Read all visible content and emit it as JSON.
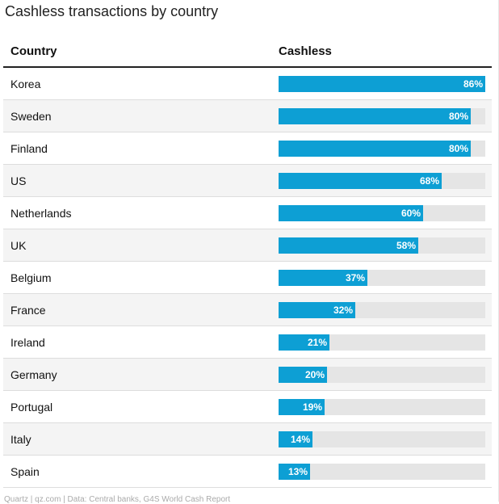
{
  "title": "Cashless transactions by country",
  "headers": {
    "country": "Country",
    "cashless": "Cashless"
  },
  "source": "Quartz | qz.com | Data: Central banks, G4S World Cash Report",
  "bar_color": "#0d9fd4",
  "track_color": "#e5e5e5",
  "chart_data": {
    "type": "bar",
    "orientation": "horizontal",
    "title": "Cashless transactions by country",
    "xlabel": "Cashless",
    "ylabel": "Country",
    "xlim": [
      0,
      86
    ],
    "unit": "%",
    "categories": [
      "Korea",
      "Sweden",
      "Finland",
      "US",
      "Netherlands",
      "UK",
      "Belgium",
      "France",
      "Ireland",
      "Germany",
      "Portugal",
      "Italy",
      "Spain"
    ],
    "values": [
      86,
      80,
      80,
      68,
      60,
      58,
      37,
      32,
      21,
      20,
      19,
      14,
      13
    ],
    "labels": [
      "86%",
      "80%",
      "80%",
      "68%",
      "60%",
      "58%",
      "37%",
      "32%",
      "21%",
      "20%",
      "19%",
      "14%",
      "13%"
    ]
  }
}
